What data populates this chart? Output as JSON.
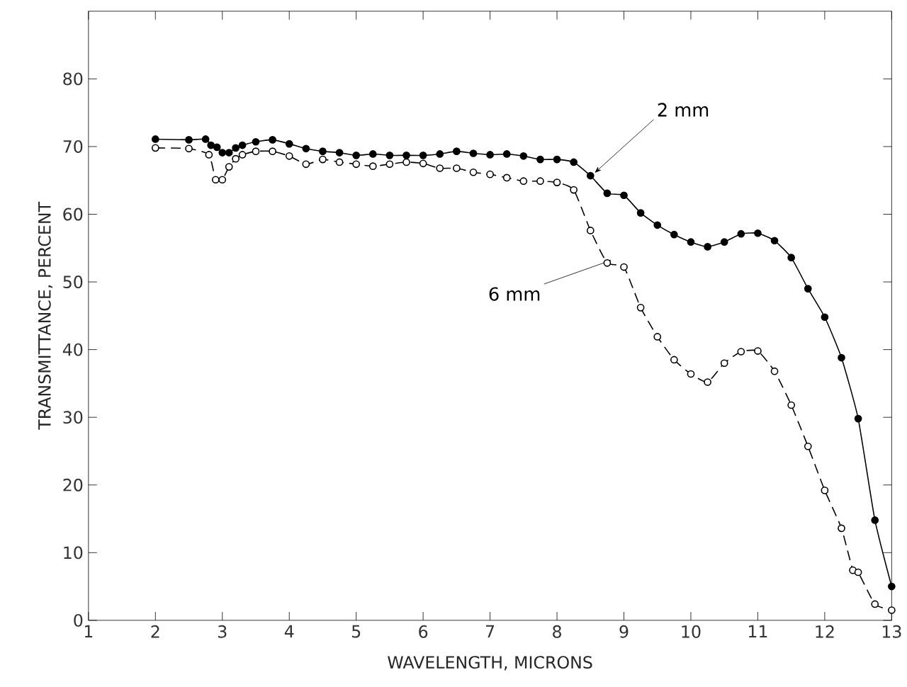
{
  "chart_data": {
    "type": "line",
    "xlabel": "WAVELENGTH, MICRONS",
    "ylabel": "TRANSMITTANCE, PERCENT",
    "xlim": [
      1,
      13
    ],
    "ylim": [
      0,
      90
    ],
    "xticks": [
      1,
      2,
      3,
      4,
      5,
      6,
      7,
      8,
      9,
      10,
      11,
      12,
      13
    ],
    "yticks": [
      0,
      10,
      20,
      30,
      40,
      50,
      60,
      70,
      80
    ],
    "series": [
      {
        "color": "#000000",
        "marker": "circle",
        "line_style": "solid",
        "x": [
          2.0,
          2.5,
          2.75,
          2.83,
          2.92,
          3.0,
          3.1,
          3.2,
          3.3,
          3.5,
          3.75,
          4.0,
          4.25,
          4.5,
          4.75,
          5.0,
          5.25,
          5.5,
          5.75,
          6.0,
          6.25,
          6.5,
          6.75,
          7.0,
          7.25,
          7.5,
          7.75,
          8.0,
          8.25,
          8.5,
          8.75,
          9.0,
          9.25,
          9.5,
          9.75,
          10.0,
          10.25,
          10.5,
          10.75,
          11.0,
          11.25,
          11.5,
          11.75,
          12.0,
          12.25,
          12.5,
          12.75,
          13.0
        ],
        "values": [
          71.1,
          71.0,
          71.1,
          70.2,
          69.9,
          69.1,
          69.1,
          69.8,
          70.2,
          70.7,
          71.0,
          70.4,
          69.7,
          69.3,
          69.1,
          68.7,
          68.9,
          68.7,
          68.7,
          68.7,
          68.9,
          69.3,
          69.0,
          68.8,
          68.9,
          68.6,
          68.1,
          68.1,
          67.7,
          65.7,
          63.1,
          62.8,
          60.2,
          58.4,
          57.0,
          55.9,
          55.2,
          55.9,
          57.1,
          57.2,
          56.1,
          53.6,
          49.0,
          44.8,
          38.8,
          29.8,
          14.8,
          5.0
        ]
      },
      {
        "color": "#000000",
        "marker": "circle",
        "line_style": "dashed",
        "x": [
          2.0,
          2.5,
          2.8,
          2.9,
          3.0,
          3.1,
          3.2,
          3.3,
          3.5,
          3.75,
          4.0,
          4.25,
          4.5,
          4.75,
          5.0,
          5.25,
          5.5,
          5.75,
          6.0,
          6.25,
          6.5,
          6.75,
          7.0,
          7.25,
          7.5,
          7.75,
          8.0,
          8.25,
          8.5,
          8.75,
          9.0,
          9.25,
          9.5,
          9.75,
          10.0,
          10.25,
          10.5,
          10.75,
          11.0,
          11.25,
          11.5,
          11.75,
          12.0,
          12.25,
          12.42,
          12.5,
          12.75,
          13.0
        ],
        "values": [
          69.8,
          69.7,
          68.8,
          65.1,
          65.1,
          67.0,
          68.2,
          68.8,
          69.3,
          69.3,
          68.6,
          67.4,
          68.1,
          67.7,
          67.4,
          67.1,
          67.4,
          67.7,
          67.5,
          66.8,
          66.8,
          66.2,
          65.9,
          65.4,
          64.9,
          64.9,
          64.7,
          63.6,
          57.6,
          52.8,
          52.2,
          46.2,
          41.9,
          38.5,
          36.4,
          35.2,
          38.0,
          39.7,
          39.8,
          36.8,
          31.8,
          25.7,
          19.2,
          13.6,
          7.4,
          7.1,
          2.4,
          1.5
        ]
      }
    ],
    "annotations": [
      {
        "text": "2 mm",
        "x": 8.5,
        "y": 65.7
      },
      {
        "text": "6 mm",
        "x": 8.75,
        "y": 52.8
      }
    ]
  }
}
